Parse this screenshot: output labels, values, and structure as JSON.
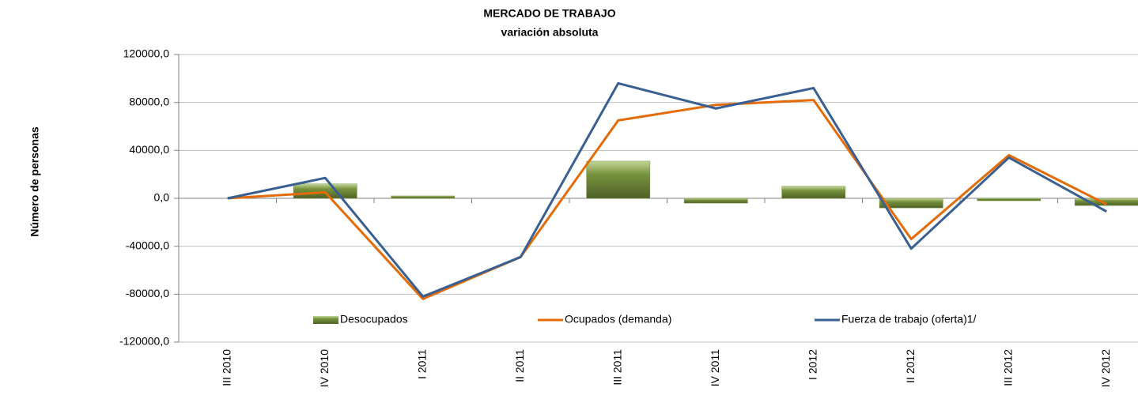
{
  "chart_data": {
    "type": "combo",
    "title": "MERCADO DE TRABAJO",
    "subtitle": "variación absoluta",
    "y_label": "Número de personas",
    "categories": [
      "III 2010",
      "IV 2010",
      "I 2011",
      "II 2011",
      "III 2011",
      "IV 2011",
      "I 2012",
      "II 2012",
      "III 2012",
      "IV 2012"
    ],
    "series": [
      {
        "name": "Desocupados",
        "type": "bar",
        "color": "#77933c",
        "values": [
          0,
          12000,
          2000,
          0,
          31000,
          -4000,
          10000,
          -8000,
          -2000,
          -6000
        ]
      },
      {
        "name": "Ocupados (demanda)",
        "type": "line",
        "color": "#e36c09",
        "values": [
          0,
          5000,
          -84000,
          -49000,
          65000,
          78000,
          82000,
          -34000,
          36000,
          -5000
        ]
      },
      {
        "name": "Fuerza de trabajo (oferta)1/",
        "type": "line",
        "color": "#3a5f91",
        "values": [
          0,
          17000,
          -82000,
          -49000,
          96000,
          75000,
          92000,
          -42000,
          34000,
          -11000
        ]
      }
    ],
    "ylim": [
      -120000,
      120000
    ],
    "yticks": [
      {
        "value": -120000,
        "label": "-120000,0"
      },
      {
        "value": -80000,
        "label": "-80000,0"
      },
      {
        "value": -40000,
        "label": "-40000,0"
      },
      {
        "value": 0,
        "label": "0,0"
      },
      {
        "value": 40000,
        "label": "40000,0"
      },
      {
        "value": 80000,
        "label": "80000,0"
      },
      {
        "value": 120000,
        "label": "120000,0"
      }
    ],
    "grid": true,
    "legend": "bottom"
  }
}
